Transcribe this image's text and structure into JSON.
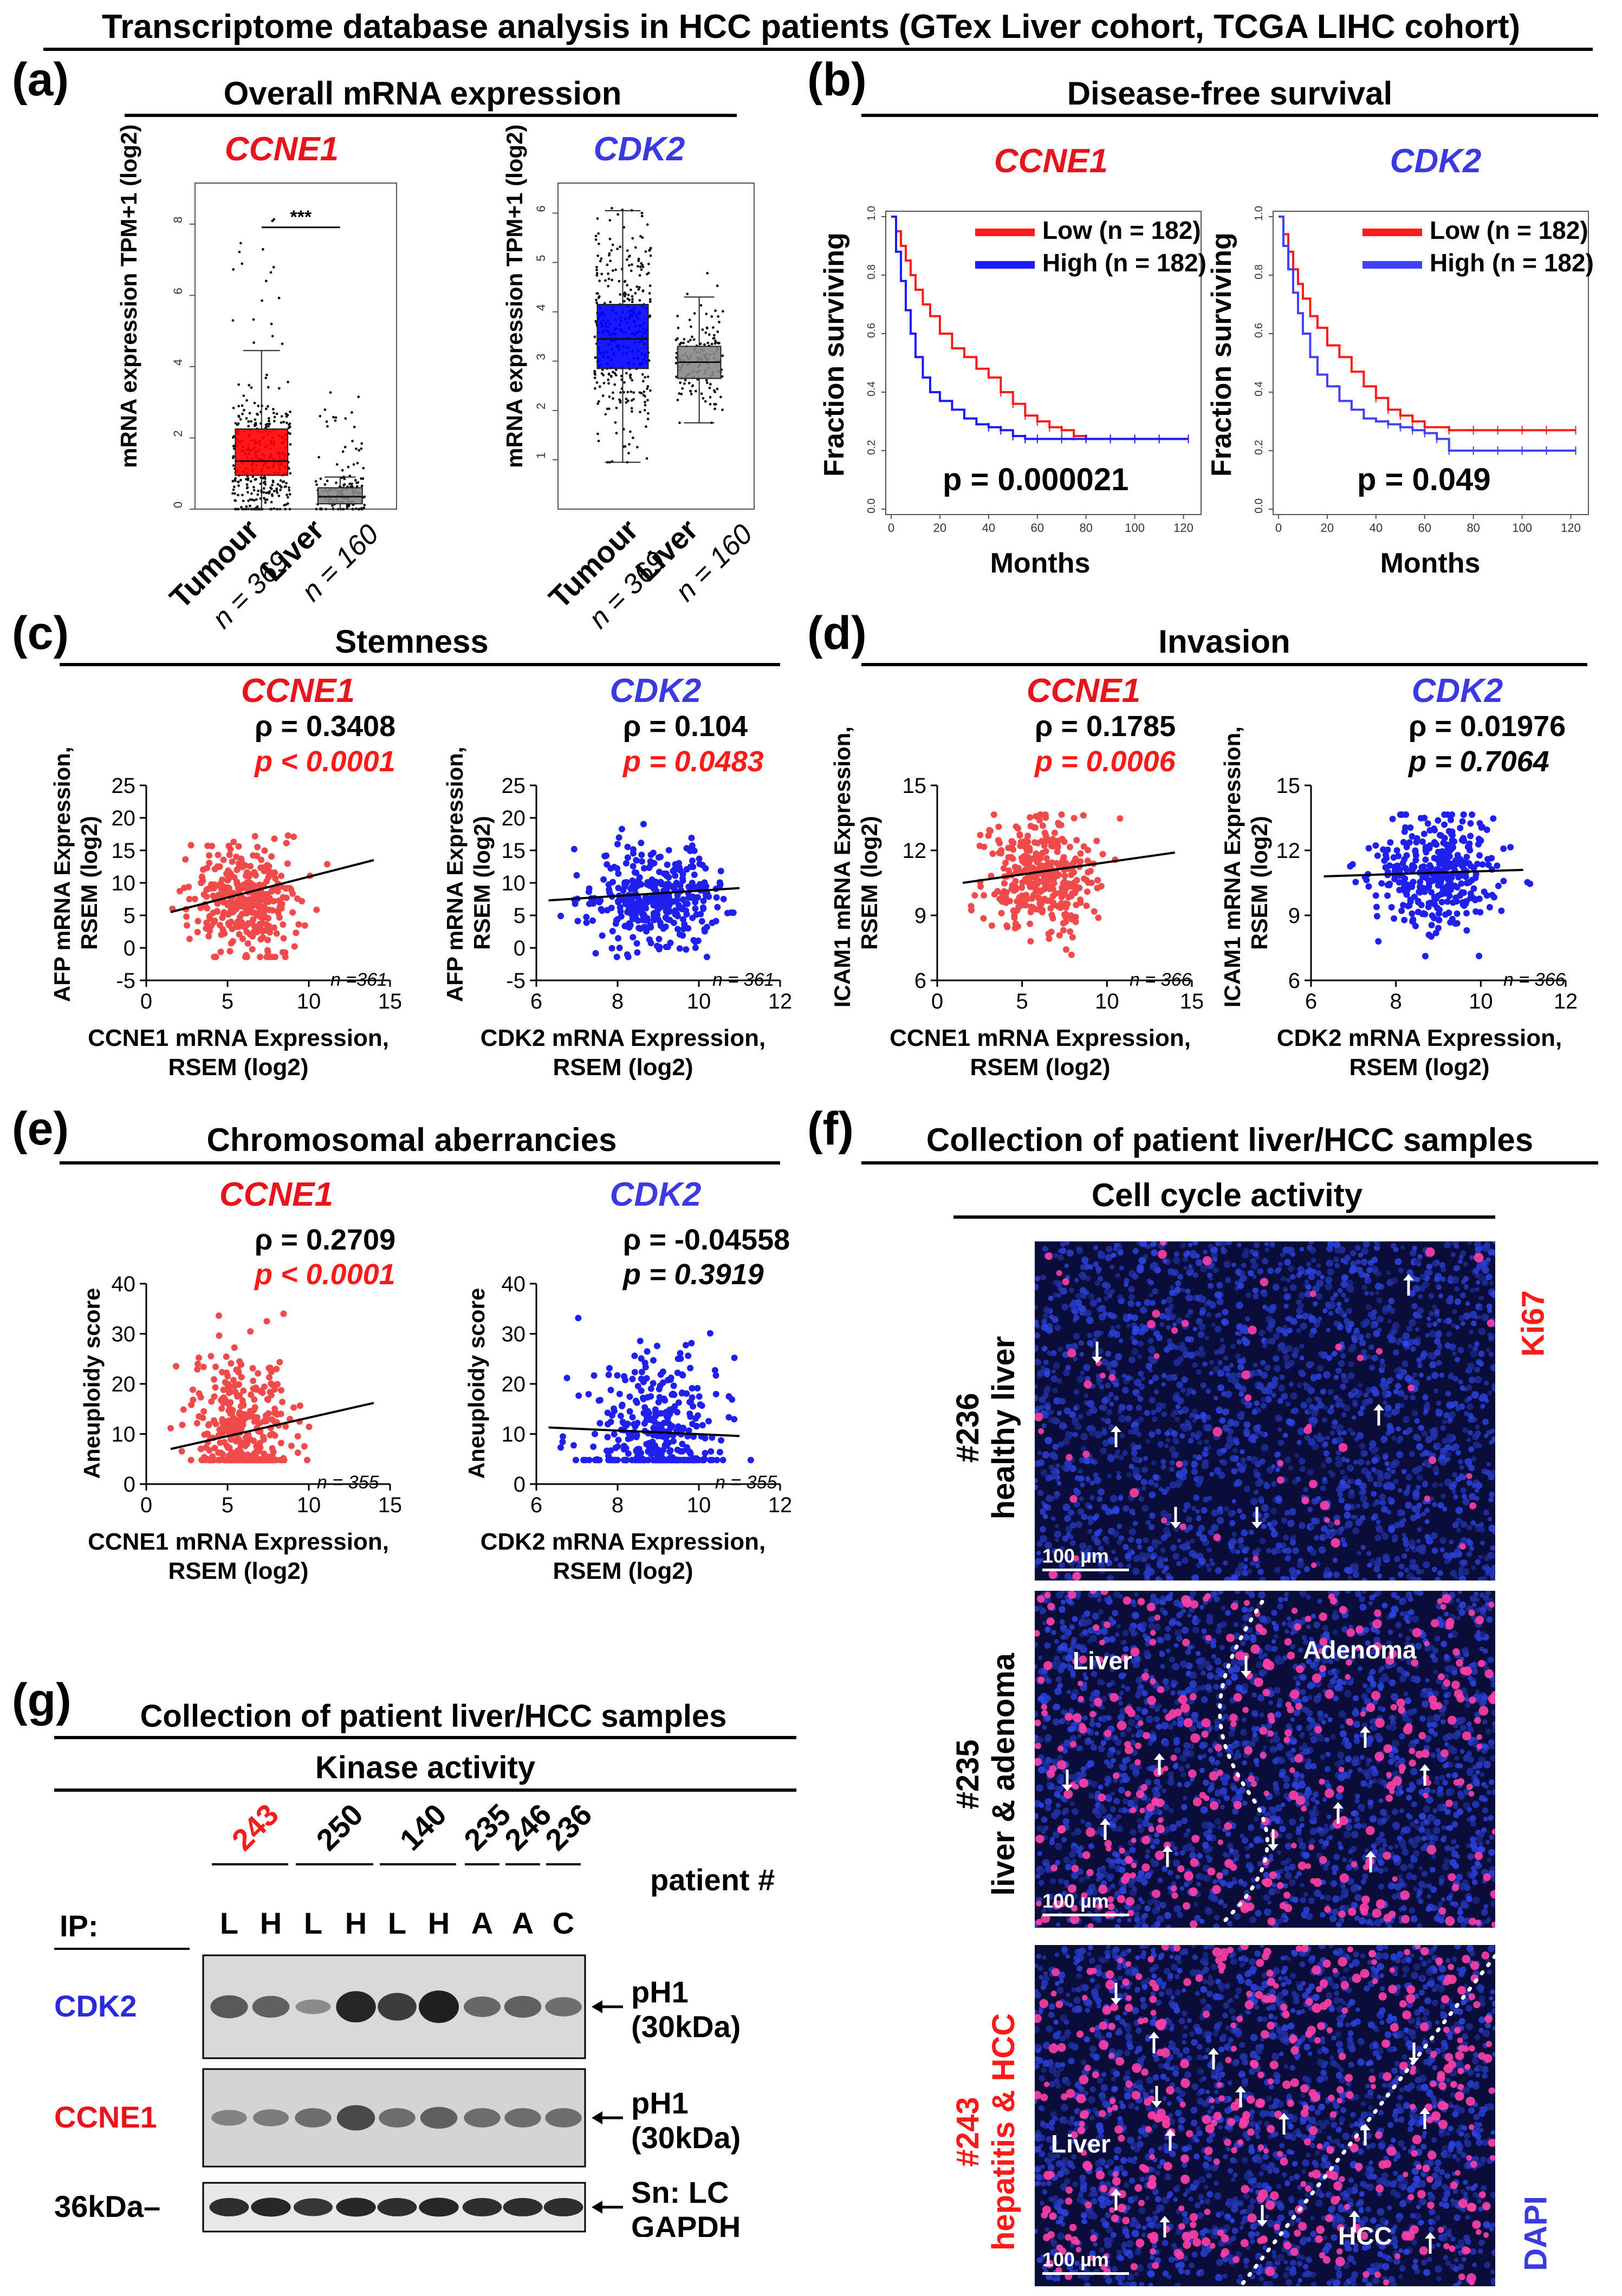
{
  "figure_title": "Transcriptome database analysis in HCC patients (GTex Liver cohort, TCGA LIHC cohort)",
  "colors": {
    "red": "#ff1a1a",
    "blue": "#1a1aff",
    "scatter_red": "#f04a4a",
    "scatter_blue": "#2020ee",
    "box_red": "#ff0000",
    "box_blue": "#0000ff",
    "box_gray": "#888888",
    "title_red": "#e8141c",
    "title_blue": "#3a3ae0"
  },
  "panels": {
    "a": {
      "letter": "(a)",
      "title": "Overall mRNA expression",
      "ylabel": "mRNA expression TPM+1 (log2)",
      "sig": "***",
      "groups": [
        "Tumour",
        "Liver"
      ],
      "tumour_label": "Tumour",
      "tumour_n": "n = 369",
      "liver_label": "Liver",
      "liver_n": "n = 160"
    },
    "b": {
      "letter": "(b)",
      "title": "Disease-free survival",
      "ylabel": "Fraction surviving",
      "xlabel": "Months",
      "legend_low": "Low (n = 182)",
      "legend_high": "High (n = 182)",
      "p_ccne1": "p = 0.000021",
      "p_cdk2": "p = 0.049"
    },
    "c": {
      "letter": "(c)",
      "title": "Stemness",
      "ylabel1": "AFP mRNA Expression,",
      "ylabel2": "RSEM (log2)",
      "rho_ccne1": "ρ = 0.3408",
      "p_ccne1": "p < 0.0001",
      "rho_cdk2": "ρ = 0.104",
      "p_cdk2": "p = 0.0483",
      "n_ccne1": "n =361",
      "n_cdk2": "n = 361"
    },
    "d": {
      "letter": "(d)",
      "title": "Invasion",
      "ylabel1": "ICAM1 mRNA Expression,",
      "ylabel2": "RSEM (log2)",
      "rho_ccne1": "ρ = 0.1785",
      "p_ccne1": "p = 0.0006",
      "rho_cdk2": "ρ = 0.01976",
      "p_cdk2": "p = 0.7064",
      "n_ccne1": "n = 366",
      "n_cdk2": "n = 366"
    },
    "e": {
      "letter": "(e)",
      "title": "Chromosomal aberrancies",
      "ylabel": "Aneuploidy score",
      "rho_ccne1": "ρ = 0.2709",
      "p_ccne1": "p < 0.0001",
      "rho_cdk2": "ρ = -0.04558",
      "p_cdk2": "p = 0.3919",
      "n_ccne1": "n = 355",
      "n_cdk2": "n = 355"
    },
    "f": {
      "letter": "(f)",
      "title": "Collection of patient liver/HCC samples",
      "subtitle": "Cell cycle activity",
      "stain_red": "Ki67",
      "stain_blue": "DAPI",
      "p1_id": "#236",
      "p1_desc": "healthy liver",
      "p2_id": "#235",
      "p2_desc": "liver & adenoma",
      "p2_left": "Liver",
      "p2_right": "Adenoma",
      "p3_id": "#243",
      "p3_desc": "hepatitis & HCC",
      "p3_left": "Liver",
      "p3_right": "HCC",
      "scale": "100 µm"
    },
    "g": {
      "letter": "(g)",
      "title": "Collection of patient liver/HCC samples",
      "subtitle": "Kinase activity",
      "patients": [
        "243",
        "250",
        "140",
        "235",
        "246",
        "236"
      ],
      "patient_label": "patient #",
      "ip_label": "IP:",
      "lanes": [
        "L",
        "H",
        "L",
        "H",
        "L",
        "H",
        "A",
        "A",
        "C"
      ],
      "row1_label": "CDK2",
      "row2_label": "CCNE1",
      "row3_label": "36kDa–",
      "r1_right1": "pH1",
      "r1_right2": "(30kDa)",
      "r2_right1": "pH1",
      "r2_right2": "(30kDa)",
      "r3_right1": "Sn: LC",
      "r3_right2": "GAPDH"
    }
  },
  "genes": {
    "ccne1": "CCNE1",
    "cdk2": "CDK2"
  },
  "axis_titles": {
    "ccne1_x1": "CCNE1 mRNA Expression,",
    "cdk2_x1": "CDK2 mRNA Expression,",
    "x2": "RSEM (log2)"
  },
  "chart_data": [
    {
      "id": "a-ccne1",
      "type": "box",
      "title": "CCNE1",
      "categories": [
        "Tumour",
        "Liver"
      ],
      "ylim": [
        0,
        9
      ],
      "yticks": [
        0,
        2,
        4,
        6,
        8
      ],
      "boxes": [
        {
          "name": "Tumour",
          "min": 0.0,
          "q1": 0.95,
          "median": 1.35,
          "q3": 2.25,
          "max": 4.45,
          "color": "#ff0000"
        },
        {
          "name": "Liver",
          "min": 0.0,
          "q1": 0.15,
          "median": 0.35,
          "q3": 0.6,
          "max": 0.9,
          "color": "#888888"
        }
      ],
      "outlier_max": [
        8.4,
        3.3
      ]
    },
    {
      "id": "a-cdk2",
      "type": "box",
      "title": "CDK2",
      "categories": [
        "Tumour",
        "Liver"
      ],
      "ylim": [
        0,
        6.5
      ],
      "yticks": [
        1,
        2,
        3,
        4,
        5,
        6
      ],
      "boxes": [
        {
          "name": "Tumour",
          "min": 0.95,
          "q1": 2.85,
          "median": 3.45,
          "q3": 4.15,
          "max": 6.05,
          "color": "#0000ff"
        },
        {
          "name": "Liver",
          "min": 1.75,
          "q1": 2.65,
          "median": 2.98,
          "q3": 3.3,
          "max": 4.3,
          "color": "#888888"
        }
      ],
      "outlier_max": [
        6.1,
        4.8
      ]
    },
    {
      "id": "b-ccne1",
      "type": "line",
      "title": "CCNE1",
      "xlabel": "Months",
      "ylabel": "Fraction surviving",
      "xlim": [
        0,
        125
      ],
      "ylim": [
        0,
        1.0
      ],
      "xticks": [
        0,
        20,
        40,
        60,
        80,
        100,
        120
      ],
      "yticks": [
        0,
        0.2,
        0.4,
        0.6,
        0.8,
        1.0
      ],
      "series": [
        {
          "name": "Low (n = 182)",
          "color": "#ff1a1a",
          "x": [
            0,
            2,
            4,
            6,
            8,
            10,
            13,
            16,
            20,
            25,
            30,
            35,
            40,
            45,
            50,
            55,
            60,
            65,
            70,
            75,
            80,
            90,
            100,
            110,
            122
          ],
          "y": [
            1,
            0.95,
            0.9,
            0.85,
            0.8,
            0.75,
            0.7,
            0.66,
            0.6,
            0.55,
            0.52,
            0.48,
            0.45,
            0.4,
            0.36,
            0.32,
            0.3,
            0.28,
            0.27,
            0.25,
            0.24,
            0.24,
            0.24,
            0.24,
            0.24
          ]
        },
        {
          "name": "High (n = 182)",
          "color": "#1a1aff",
          "x": [
            0,
            2,
            4,
            6,
            8,
            10,
            13,
            16,
            20,
            25,
            30,
            35,
            40,
            45,
            50,
            55,
            60,
            70,
            80,
            90,
            100,
            110,
            122
          ],
          "y": [
            1,
            0.88,
            0.78,
            0.68,
            0.6,
            0.52,
            0.45,
            0.4,
            0.37,
            0.34,
            0.31,
            0.29,
            0.28,
            0.27,
            0.25,
            0.24,
            0.24,
            0.24,
            0.24,
            0.24,
            0.24,
            0.24,
            0.24
          ]
        }
      ]
    },
    {
      "id": "b-cdk2",
      "type": "line",
      "title": "CDK2",
      "xlabel": "Months",
      "ylabel": "Fraction surviving",
      "xlim": [
        0,
        125
      ],
      "ylim": [
        0,
        1.0
      ],
      "xticks": [
        0,
        20,
        40,
        60,
        80,
        100,
        120
      ],
      "yticks": [
        0,
        0.2,
        0.4,
        0.6,
        0.8,
        1.0
      ],
      "series": [
        {
          "name": "Low (n = 182)",
          "color": "#ff1a1a",
          "x": [
            0,
            2,
            4,
            6,
            8,
            10,
            13,
            16,
            20,
            25,
            30,
            35,
            40,
            45,
            50,
            55,
            60,
            70,
            80,
            90,
            100,
            110,
            122
          ],
          "y": [
            1,
            0.94,
            0.88,
            0.82,
            0.77,
            0.72,
            0.66,
            0.62,
            0.56,
            0.52,
            0.47,
            0.42,
            0.38,
            0.34,
            0.32,
            0.3,
            0.28,
            0.27,
            0.27,
            0.27,
            0.27,
            0.27,
            0.27
          ]
        },
        {
          "name": "High (n = 182)",
          "color": "#4040ff",
          "x": [
            0,
            2,
            4,
            6,
            8,
            10,
            13,
            16,
            20,
            25,
            30,
            35,
            40,
            45,
            50,
            55,
            60,
            65,
            70,
            80,
            90,
            100,
            110,
            122
          ],
          "y": [
            1,
            0.9,
            0.82,
            0.74,
            0.67,
            0.6,
            0.52,
            0.46,
            0.42,
            0.37,
            0.34,
            0.31,
            0.3,
            0.29,
            0.28,
            0.27,
            0.26,
            0.24,
            0.2,
            0.2,
            0.2,
            0.2,
            0.2,
            0.2
          ]
        }
      ]
    },
    {
      "id": "c-ccne1",
      "type": "scatter",
      "xlabel": "CCNE1 mRNA Expression, RSEM (log2)",
      "ylabel": "AFP mRNA Expression, RSEM (log2)",
      "xlim": [
        0,
        15
      ],
      "ylim": [
        -5,
        25
      ],
      "xticks": [
        0,
        5,
        10,
        15
      ],
      "yticks": [
        -5,
        0,
        5,
        10,
        15,
        20,
        25
      ],
      "n": 361,
      "x_center": 6.0,
      "x_sd": 1.6,
      "y_center": 7.5,
      "y_sd": 4.2,
      "fit": {
        "x": [
          1.5,
          14
        ],
        "y": [
          5.5,
          13.5
        ]
      },
      "color": "#f04a4a"
    },
    {
      "id": "c-cdk2",
      "type": "scatter",
      "xlabel": "CDK2 mRNA Expression, RSEM (log2)",
      "ylabel": "AFP mRNA Expression, RSEM (log2)",
      "xlim": [
        6,
        12
      ],
      "ylim": [
        -5,
        25
      ],
      "xticks": [
        6,
        8,
        10,
        12
      ],
      "yticks": [
        -5,
        0,
        5,
        10,
        15,
        20,
        25
      ],
      "n": 361,
      "x_center": 8.9,
      "x_sd": 0.8,
      "y_center": 7.5,
      "y_sd": 4.0,
      "fit": {
        "x": [
          6.3,
          11
        ],
        "y": [
          7.3,
          9.2
        ]
      },
      "color": "#2020ee"
    },
    {
      "id": "d-ccne1",
      "type": "scatter",
      "xlabel": "CCNE1 mRNA Expression, RSEM (log2)",
      "ylabel": "ICAM1 mRNA Expression, RSEM (log2)",
      "xlim": [
        0,
        15
      ],
      "ylim": [
        6,
        15
      ],
      "xticks": [
        0,
        5,
        10,
        15
      ],
      "yticks": [
        6,
        9,
        12,
        15
      ],
      "n": 366,
      "x_center": 6.0,
      "x_sd": 1.6,
      "y_center": 10.9,
      "y_sd": 1.3,
      "fit": {
        "x": [
          1.5,
          14
        ],
        "y": [
          10.5,
          11.9
        ]
      },
      "color": "#f04a4a"
    },
    {
      "id": "d-cdk2",
      "type": "scatter",
      "xlabel": "CDK2 mRNA Expression, RSEM (log2)",
      "ylabel": "ICAM1 mRNA Expression, RSEM (log2)",
      "xlim": [
        6,
        12
      ],
      "ylim": [
        6,
        15
      ],
      "xticks": [
        6,
        8,
        10,
        12
      ],
      "yticks": [
        6,
        9,
        12,
        15
      ],
      "n": 366,
      "x_center": 8.9,
      "x_sd": 0.8,
      "y_center": 10.9,
      "y_sd": 1.3,
      "fit": {
        "x": [
          6.3,
          11
        ],
        "y": [
          10.8,
          11.1
        ]
      },
      "color": "#2020ee"
    },
    {
      "id": "e-ccne1",
      "type": "scatter",
      "xlabel": "CCNE1 mRNA Expression, RSEM (log2)",
      "ylabel": "Aneuploidy score",
      "xlim": [
        0,
        15
      ],
      "ylim": [
        0,
        40
      ],
      "xticks": [
        0,
        5,
        10,
        15
      ],
      "yticks": [
        0,
        10,
        20,
        30,
        40
      ],
      "n": 355,
      "x_center": 6.0,
      "x_sd": 1.6,
      "y_center": 10,
      "y_sd": 8,
      "fit": {
        "x": [
          1.5,
          14
        ],
        "y": [
          7,
          16.2
        ]
      },
      "color": "#f04a4a"
    },
    {
      "id": "e-cdk2",
      "type": "scatter",
      "xlabel": "CDK2 mRNA Expression, RSEM (log2)",
      "ylabel": "Aneuploidy score",
      "xlim": [
        6,
        12
      ],
      "ylim": [
        0,
        40
      ],
      "xticks": [
        6,
        8,
        10,
        12
      ],
      "yticks": [
        0,
        10,
        20,
        30,
        40
      ],
      "n": 355,
      "x_center": 8.9,
      "x_sd": 0.8,
      "y_center": 10,
      "y_sd": 8,
      "fit": {
        "x": [
          6.3,
          11
        ],
        "y": [
          11.3,
          9.6
        ]
      },
      "color": "#2020ee"
    }
  ]
}
